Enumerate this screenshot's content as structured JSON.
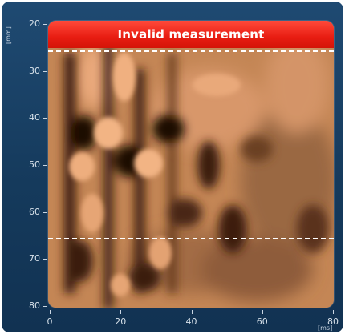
{
  "y_axis": {
    "unit": "[mm]",
    "ticks": [
      "20",
      "30",
      "40",
      "50",
      "60",
      "70",
      "80"
    ]
  },
  "x_axis": {
    "unit": "[ms]",
    "ticks": [
      "0",
      "20",
      "40",
      "60",
      "80"
    ]
  },
  "warning": {
    "text": "Invalid measurement",
    "color": "#e81d12"
  },
  "image_colors": {
    "light": "#e8a677",
    "mid": "#c98a5a",
    "dark": "#2a140a"
  },
  "markers": {
    "upper_line_mm": 25.7,
    "lower_line_mm": 65.5
  }
}
